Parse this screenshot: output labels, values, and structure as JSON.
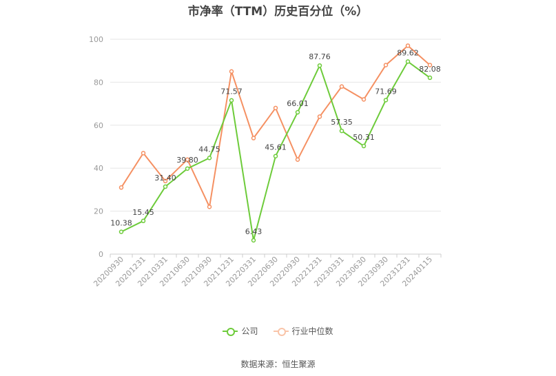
{
  "chart_data": {
    "type": "line",
    "title": "市净率（TTM）历史百分位（%）",
    "source": "数据来源：恒生聚源",
    "categories": [
      "20200930",
      "20201231",
      "20210331",
      "20210630",
      "20210930",
      "20211231",
      "20220331",
      "20220630",
      "20220930",
      "20221231",
      "20230331",
      "20230630",
      "20230930",
      "20231231",
      "20240115"
    ],
    "ylim": [
      0,
      100
    ],
    "yticks": [
      0,
      20,
      40,
      60,
      80,
      100
    ],
    "grid": true,
    "legend_position": "bottom",
    "series": [
      {
        "name": "公司",
        "color": "#6dcb3a",
        "values": [
          10.38,
          15.45,
          31.4,
          39.8,
          44.75,
          71.57,
          6.43,
          45.61,
          66.01,
          87.76,
          57.35,
          50.31,
          71.69,
          89.62,
          82.08
        ],
        "labels": [
          "10.38",
          "15.45",
          "31.40",
          "39.80",
          "44.75",
          "71.57",
          "6.43",
          "45.61",
          "66.01",
          "87.76",
          "57.35",
          "50.31",
          "71.69",
          "89.62",
          "82.08"
        ]
      },
      {
        "name": "行业中位数",
        "color": "#f59062",
        "values": [
          31,
          47,
          34,
          44,
          22,
          85,
          54,
          68,
          44,
          64,
          78,
          72,
          88,
          97,
          88
        ]
      }
    ]
  }
}
